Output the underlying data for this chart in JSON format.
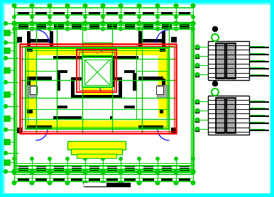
{
  "bg": "#ffffff",
  "cyan": "#00ffff",
  "green": "#00cc00",
  "yellow": "#ffff00",
  "red": "#ff0000",
  "blue": "#0000ff",
  "black": "#000000",
  "white": "#ffffff",
  "gray": "#808080",
  "lgray": "#aaaaaa"
}
